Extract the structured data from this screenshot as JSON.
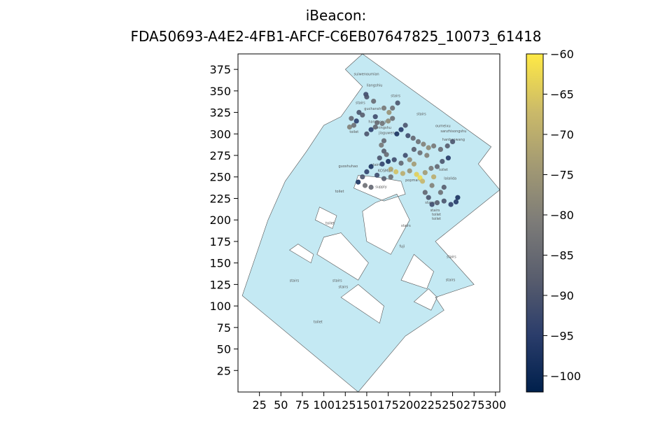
{
  "chart_data": {
    "type": "scatter",
    "title_line1": "iBeacon:",
    "title_line2": "FDA50693-A4E2-4FB1-AFCF-C6EB07647825_10073_61418",
    "xlabel": "",
    "ylabel": "",
    "xlim": [
      0,
      305
    ],
    "ylim": [
      0,
      393
    ],
    "xticks": [
      25,
      50,
      75,
      100,
      125,
      150,
      175,
      200,
      225,
      250,
      275,
      300
    ],
    "yticks": [
      25,
      50,
      75,
      100,
      125,
      150,
      175,
      200,
      225,
      250,
      275,
      300,
      325,
      350,
      375
    ],
    "grid": false,
    "colorbar": {
      "range": [
        -102,
        -60
      ],
      "ticks": [
        -60,
        -65,
        -70,
        -75,
        -80,
        -85,
        -90,
        -95,
        -100
      ],
      "tick_labels": [
        "−60",
        "−65",
        "−70",
        "−75",
        "−80",
        "−85",
        "−90",
        "−95",
        "−100"
      ],
      "colormap": "cividis",
      "colors": [
        "#00204c",
        "#2b3d6b",
        "#575c6d",
        "#7c7b78",
        "#a39a73",
        "#cbba69",
        "#ffe945"
      ]
    },
    "floorplan": {
      "fill": "#c4e9f3",
      "stroke": "#555555",
      "outline": [
        [
          5,
          112
        ],
        [
          140,
          0
        ],
        [
          195,
          65
        ],
        [
          240,
          95
        ],
        [
          230,
          110
        ],
        [
          275,
          125
        ],
        [
          230,
          175
        ],
        [
          305,
          235
        ],
        [
          280,
          265
        ],
        [
          295,
          285
        ],
        [
          145,
          393
        ],
        [
          125,
          375
        ],
        [
          145,
          355
        ],
        [
          120,
          320
        ],
        [
          100,
          310
        ],
        [
          80,
          280
        ],
        [
          55,
          245
        ],
        [
          35,
          200
        ]
      ],
      "holes": [
        [
          [
            135,
            237
          ],
          [
            170,
            222
          ],
          [
            195,
            230
          ],
          [
            190,
            245
          ],
          [
            160,
            250
          ],
          [
            140,
            252
          ]
        ],
        [
          [
            150,
            175
          ],
          [
            178,
            160
          ],
          [
            200,
            200
          ],
          [
            185,
            230
          ],
          [
            160,
            220
          ],
          [
            145,
            210
          ]
        ],
        [
          [
            92,
            160
          ],
          [
            140,
            130
          ],
          [
            152,
            150
          ],
          [
            120,
            185
          ],
          [
            100,
            180
          ]
        ],
        [
          [
            120,
            110
          ],
          [
            165,
            80
          ],
          [
            170,
            100
          ],
          [
            140,
            125
          ]
        ],
        [
          [
            205,
            105
          ],
          [
            225,
            95
          ],
          [
            232,
            110
          ],
          [
            222,
            120
          ]
        ],
        [
          [
            190,
            130
          ],
          [
            220,
            120
          ],
          [
            228,
            140
          ],
          [
            205,
            160
          ]
        ],
        [
          [
            90,
            200
          ],
          [
            110,
            190
          ],
          [
            115,
            205
          ],
          [
            95,
            215
          ]
        ],
        [
          [
            60,
            165
          ],
          [
            85,
            150
          ],
          [
            88,
            160
          ],
          [
            70,
            172
          ]
        ]
      ],
      "labels": [
        {
          "text": "suiwenoumian",
          "x": 135,
          "y": 368
        },
        {
          "text": "liangshiu",
          "x": 150,
          "y": 355
        },
        {
          "text": "stairs",
          "x": 178,
          "y": 343
        },
        {
          "text": "stairs",
          "x": 137,
          "y": 335
        },
        {
          "text": "guchansh",
          "x": 147,
          "y": 328
        },
        {
          "text": "stairs",
          "x": 208,
          "y": 322
        },
        {
          "text": "hanggong",
          "x": 152,
          "y": 313
        },
        {
          "text": "mingshu",
          "x": 161,
          "y": 306
        },
        {
          "text": "jiaguwen",
          "x": 164,
          "y": 300
        },
        {
          "text": "toilet",
          "x": 130,
          "y": 301
        },
        {
          "text": "oumeixu",
          "x": 230,
          "y": 308
        },
        {
          "text": "sanzhisongshu",
          "x": 236,
          "y": 302
        },
        {
          "text": "hanbaowang",
          "x": 238,
          "y": 292
        },
        {
          "text": "guoshuhao",
          "x": 117,
          "y": 261
        },
        {
          "text": "KOSMEA",
          "x": 163,
          "y": 256
        },
        {
          "text": "stairs",
          "x": 155,
          "y": 263
        },
        {
          "text": "toilet",
          "x": 234,
          "y": 257
        },
        {
          "text": "lalalida",
          "x": 240,
          "y": 247
        },
        {
          "text": "popmart",
          "x": 195,
          "y": 245
        },
        {
          "text": "supply",
          "x": 160,
          "y": 237
        },
        {
          "text": "stairs",
          "x": 218,
          "y": 219
        },
        {
          "text": "stairs",
          "x": 224,
          "y": 210
        },
        {
          "text": "toilet",
          "x": 226,
          "y": 205
        },
        {
          "text": "toilet",
          "x": 226,
          "y": 200
        },
        {
          "text": "stairs",
          "x": 190,
          "y": 192
        },
        {
          "text": "fuji",
          "x": 188,
          "y": 168
        },
        {
          "text": "stairs",
          "x": 243,
          "y": 156
        },
        {
          "text": "stairs",
          "x": 60,
          "y": 128
        },
        {
          "text": "stairs",
          "x": 110,
          "y": 128
        },
        {
          "text": "stairs",
          "x": 117,
          "y": 121
        },
        {
          "text": "stairs",
          "x": 242,
          "y": 129
        },
        {
          "text": "toilet",
          "x": 102,
          "y": 195
        },
        {
          "text": "toilet",
          "x": 113,
          "y": 232
        },
        {
          "text": "toilet",
          "x": 88,
          "y": 80
        }
      ]
    },
    "points": [
      {
        "x": 149,
        "y": 346,
        "v": -92
      },
      {
        "x": 150,
        "y": 343,
        "v": -90
      },
      {
        "x": 158,
        "y": 338,
        "v": -85
      },
      {
        "x": 132,
        "y": 318,
        "v": -86
      },
      {
        "x": 138,
        "y": 315,
        "v": -95
      },
      {
        "x": 141,
        "y": 325,
        "v": -90
      },
      {
        "x": 130,
        "y": 308,
        "v": -80
      },
      {
        "x": 135,
        "y": 310,
        "v": -84
      },
      {
        "x": 145,
        "y": 322,
        "v": -88
      },
      {
        "x": 160,
        "y": 320,
        "v": -92
      },
      {
        "x": 162,
        "y": 313,
        "v": -85
      },
      {
        "x": 170,
        "y": 330,
        "v": -82
      },
      {
        "x": 176,
        "y": 325,
        "v": -76
      },
      {
        "x": 180,
        "y": 330,
        "v": -84
      },
      {
        "x": 186,
        "y": 336,
        "v": -90
      },
      {
        "x": 150,
        "y": 300,
        "v": -90
      },
      {
        "x": 155,
        "y": 305,
        "v": -95
      },
      {
        "x": 160,
        "y": 308,
        "v": -86
      },
      {
        "x": 168,
        "y": 312,
        "v": -83
      },
      {
        "x": 175,
        "y": 315,
        "v": -78
      },
      {
        "x": 180,
        "y": 318,
        "v": -84
      },
      {
        "x": 185,
        "y": 300,
        "v": -98
      },
      {
        "x": 190,
        "y": 305,
        "v": -96
      },
      {
        "x": 195,
        "y": 310,
        "v": -90
      },
      {
        "x": 198,
        "y": 298,
        "v": -92
      },
      {
        "x": 204,
        "y": 295,
        "v": -86
      },
      {
        "x": 210,
        "y": 291,
        "v": -84
      },
      {
        "x": 216,
        "y": 288,
        "v": -80
      },
      {
        "x": 222,
        "y": 284,
        "v": -78
      },
      {
        "x": 228,
        "y": 286,
        "v": -82
      },
      {
        "x": 236,
        "y": 282,
        "v": -85
      },
      {
        "x": 244,
        "y": 286,
        "v": -88
      },
      {
        "x": 250,
        "y": 291,
        "v": -90
      },
      {
        "x": 170,
        "y": 292,
        "v": -86
      },
      {
        "x": 167,
        "y": 287,
        "v": -82
      },
      {
        "x": 170,
        "y": 280,
        "v": -88
      },
      {
        "x": 173,
        "y": 276,
        "v": -85
      },
      {
        "x": 165,
        "y": 272,
        "v": -90
      },
      {
        "x": 168,
        "y": 265,
        "v": -94
      },
      {
        "x": 175,
        "y": 268,
        "v": -98
      },
      {
        "x": 182,
        "y": 270,
        "v": -92
      },
      {
        "x": 190,
        "y": 266,
        "v": -86
      },
      {
        "x": 178,
        "y": 259,
        "v": -72
      },
      {
        "x": 184,
        "y": 256,
        "v": -66
      },
      {
        "x": 192,
        "y": 254,
        "v": -70
      },
      {
        "x": 200,
        "y": 257,
        "v": -76
      },
      {
        "x": 208,
        "y": 253,
        "v": -64
      },
      {
        "x": 212,
        "y": 249,
        "v": -62
      },
      {
        "x": 215,
        "y": 245,
        "v": -68
      },
      {
        "x": 218,
        "y": 255,
        "v": -74
      },
      {
        "x": 225,
        "y": 260,
        "v": -82
      },
      {
        "x": 232,
        "y": 262,
        "v": -86
      },
      {
        "x": 238,
        "y": 268,
        "v": -90
      },
      {
        "x": 245,
        "y": 272,
        "v": -96
      },
      {
        "x": 220,
        "y": 275,
        "v": -80
      },
      {
        "x": 212,
        "y": 278,
        "v": -84
      },
      {
        "x": 205,
        "y": 282,
        "v": -88
      },
      {
        "x": 200,
        "y": 270,
        "v": -78
      },
      {
        "x": 205,
        "y": 265,
        "v": -74
      },
      {
        "x": 195,
        "y": 275,
        "v": -92
      },
      {
        "x": 155,
        "y": 262,
        "v": -98
      },
      {
        "x": 150,
        "y": 256,
        "v": -94
      },
      {
        "x": 145,
        "y": 250,
        "v": -90
      },
      {
        "x": 140,
        "y": 244,
        "v": -98
      },
      {
        "x": 148,
        "y": 240,
        "v": -84
      },
      {
        "x": 155,
        "y": 238,
        "v": -86
      },
      {
        "x": 162,
        "y": 252,
        "v": -92
      },
      {
        "x": 170,
        "y": 248,
        "v": -88
      },
      {
        "x": 178,
        "y": 250,
        "v": -84
      },
      {
        "x": 218,
        "y": 232,
        "v": -86
      },
      {
        "x": 222,
        "y": 226,
        "v": -90
      },
      {
        "x": 226,
        "y": 218,
        "v": -92
      },
      {
        "x": 232,
        "y": 220,
        "v": -88
      },
      {
        "x": 240,
        "y": 222,
        "v": -90
      },
      {
        "x": 248,
        "y": 218,
        "v": -94
      },
      {
        "x": 254,
        "y": 221,
        "v": -96
      },
      {
        "x": 256,
        "y": 226,
        "v": -98
      },
      {
        "x": 236,
        "y": 232,
        "v": -84
      },
      {
        "x": 240,
        "y": 238,
        "v": -88
      },
      {
        "x": 226,
        "y": 240,
        "v": -80
      },
      {
        "x": 228,
        "y": 250,
        "v": -70
      }
    ]
  }
}
